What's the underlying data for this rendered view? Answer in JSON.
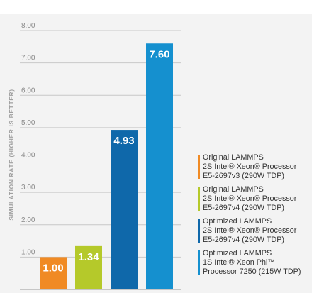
{
  "chart_data": {
    "type": "bar",
    "categories": [
      "Original LAMMPS 2S Intel® Xeon® Processor E5-2697v3 (290W TDP)",
      "Original LAMMPS 2S Intel® Xeon® Processor E5-2697v4 (290W TDP)",
      "Optimized LAMMPS 2S Intel® Xeon® Processor E5-2697v4 (290W TDP)",
      "Optimized LAMMPS 1S Intel® Xeon Phi™ Processor 7250 (215W TDP)"
    ],
    "values": [
      1.0,
      1.34,
      4.93,
      7.6
    ],
    "data_labels": [
      "1.00",
      "1.34",
      "4.93",
      "7.60"
    ],
    "colors": [
      "#f08a24",
      "#b5c92a",
      "#0f68aa",
      "#1590cf"
    ],
    "ylabel": "SIMULATION RATE (HIGHER IS BETTER)",
    "ylim": [
      0,
      8
    ],
    "y_ticks": [
      "1.00",
      "2.00",
      "3.00",
      "4.00",
      "5.00",
      "6.00",
      "7.00",
      "8.00"
    ],
    "grid": true,
    "legend_position": "right"
  },
  "legend": [
    {
      "color": "#f08a24",
      "lines": [
        "Original LAMMPS",
        "2S Intel® Xeon® Processor",
        "E5-2697v3 (290W TDP)"
      ]
    },
    {
      "color": "#b5c92a",
      "lines": [
        "Original LAMMPS",
        "2S Intel® Xeon® Processor",
        "E5-2697v4 (290W TDP)"
      ]
    },
    {
      "color": "#0f68aa",
      "lines": [
        "Optimized LAMMPS",
        "2S Intel® Xeon® Processor",
        "E5-2697v4 (290W TDP)"
      ]
    },
    {
      "color": "#1590cf",
      "lines": [
        "Optimized LAMMPS",
        "1S Intel® Xeon Phi™",
        "Processor 7250 (215W TDP)"
      ]
    }
  ]
}
